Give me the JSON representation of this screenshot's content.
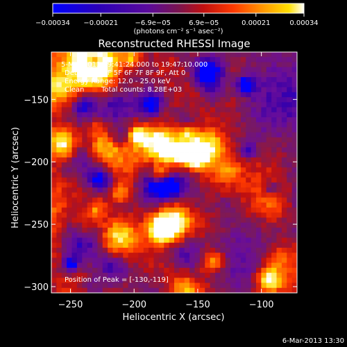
{
  "chart_data": {
    "type": "heatmap",
    "title": "Reconstructed RHESSI Image",
    "xlabel": "Heliocentric X (arcsec)",
    "ylabel": "Heliocentric Y (arcsec)",
    "xlim": [
      -265,
      -72
    ],
    "ylim": [
      -305,
      -112
    ],
    "xticks": [
      -250,
      -200,
      -150,
      -100
    ],
    "xtick_labels": [
      "−250",
      "−200",
      "−150",
      "−100"
    ],
    "yticks": [
      -150,
      -200,
      -250,
      -300
    ],
    "ytick_labels": [
      "−150",
      "−200",
      "−250",
      "−300"
    ],
    "colorbar": {
      "range": [
        -0.00034,
        0.00034
      ],
      "ticks": [
        -0.00034,
        -0.00021,
        -6.9e-05,
        6.9e-05,
        0.00021,
        0.00034
      ],
      "tick_labels": [
        "−0.00034",
        "−0.00021",
        "−6.9e−05",
        "6.9e−05",
        "0.00021",
        "0.00034"
      ],
      "units_label": "(photons cm⁻² s⁻¹ asec⁻²)",
      "colors": [
        "#0000ff",
        "#3a00a8",
        "#6a0e9a",
        "#7a1a5a",
        "#c01010",
        "#ff3a00",
        "#ff8c00",
        "#ffe000",
        "#ffffff"
      ]
    },
    "peak_position": [
      -130,
      -119
    ],
    "colormap_description": "blue-purple-red-yellow-white"
  },
  "annotations": {
    "time_range": "5-Mar-2013 19:41:24.000 to 19:47:10.000",
    "detectors": "Detectors: 3F 5F 6F 7F 8F 9F, Att 0",
    "energy_range": "Energy Range: 12.0 - 25.0 keV",
    "clean_label": "Clean",
    "total_counts": "Total counts: 8.28E+03",
    "peak_text": "Position of Peak = [-130,-119]"
  },
  "footer": {
    "timestamp": "6-Mar-2013 13:30"
  }
}
